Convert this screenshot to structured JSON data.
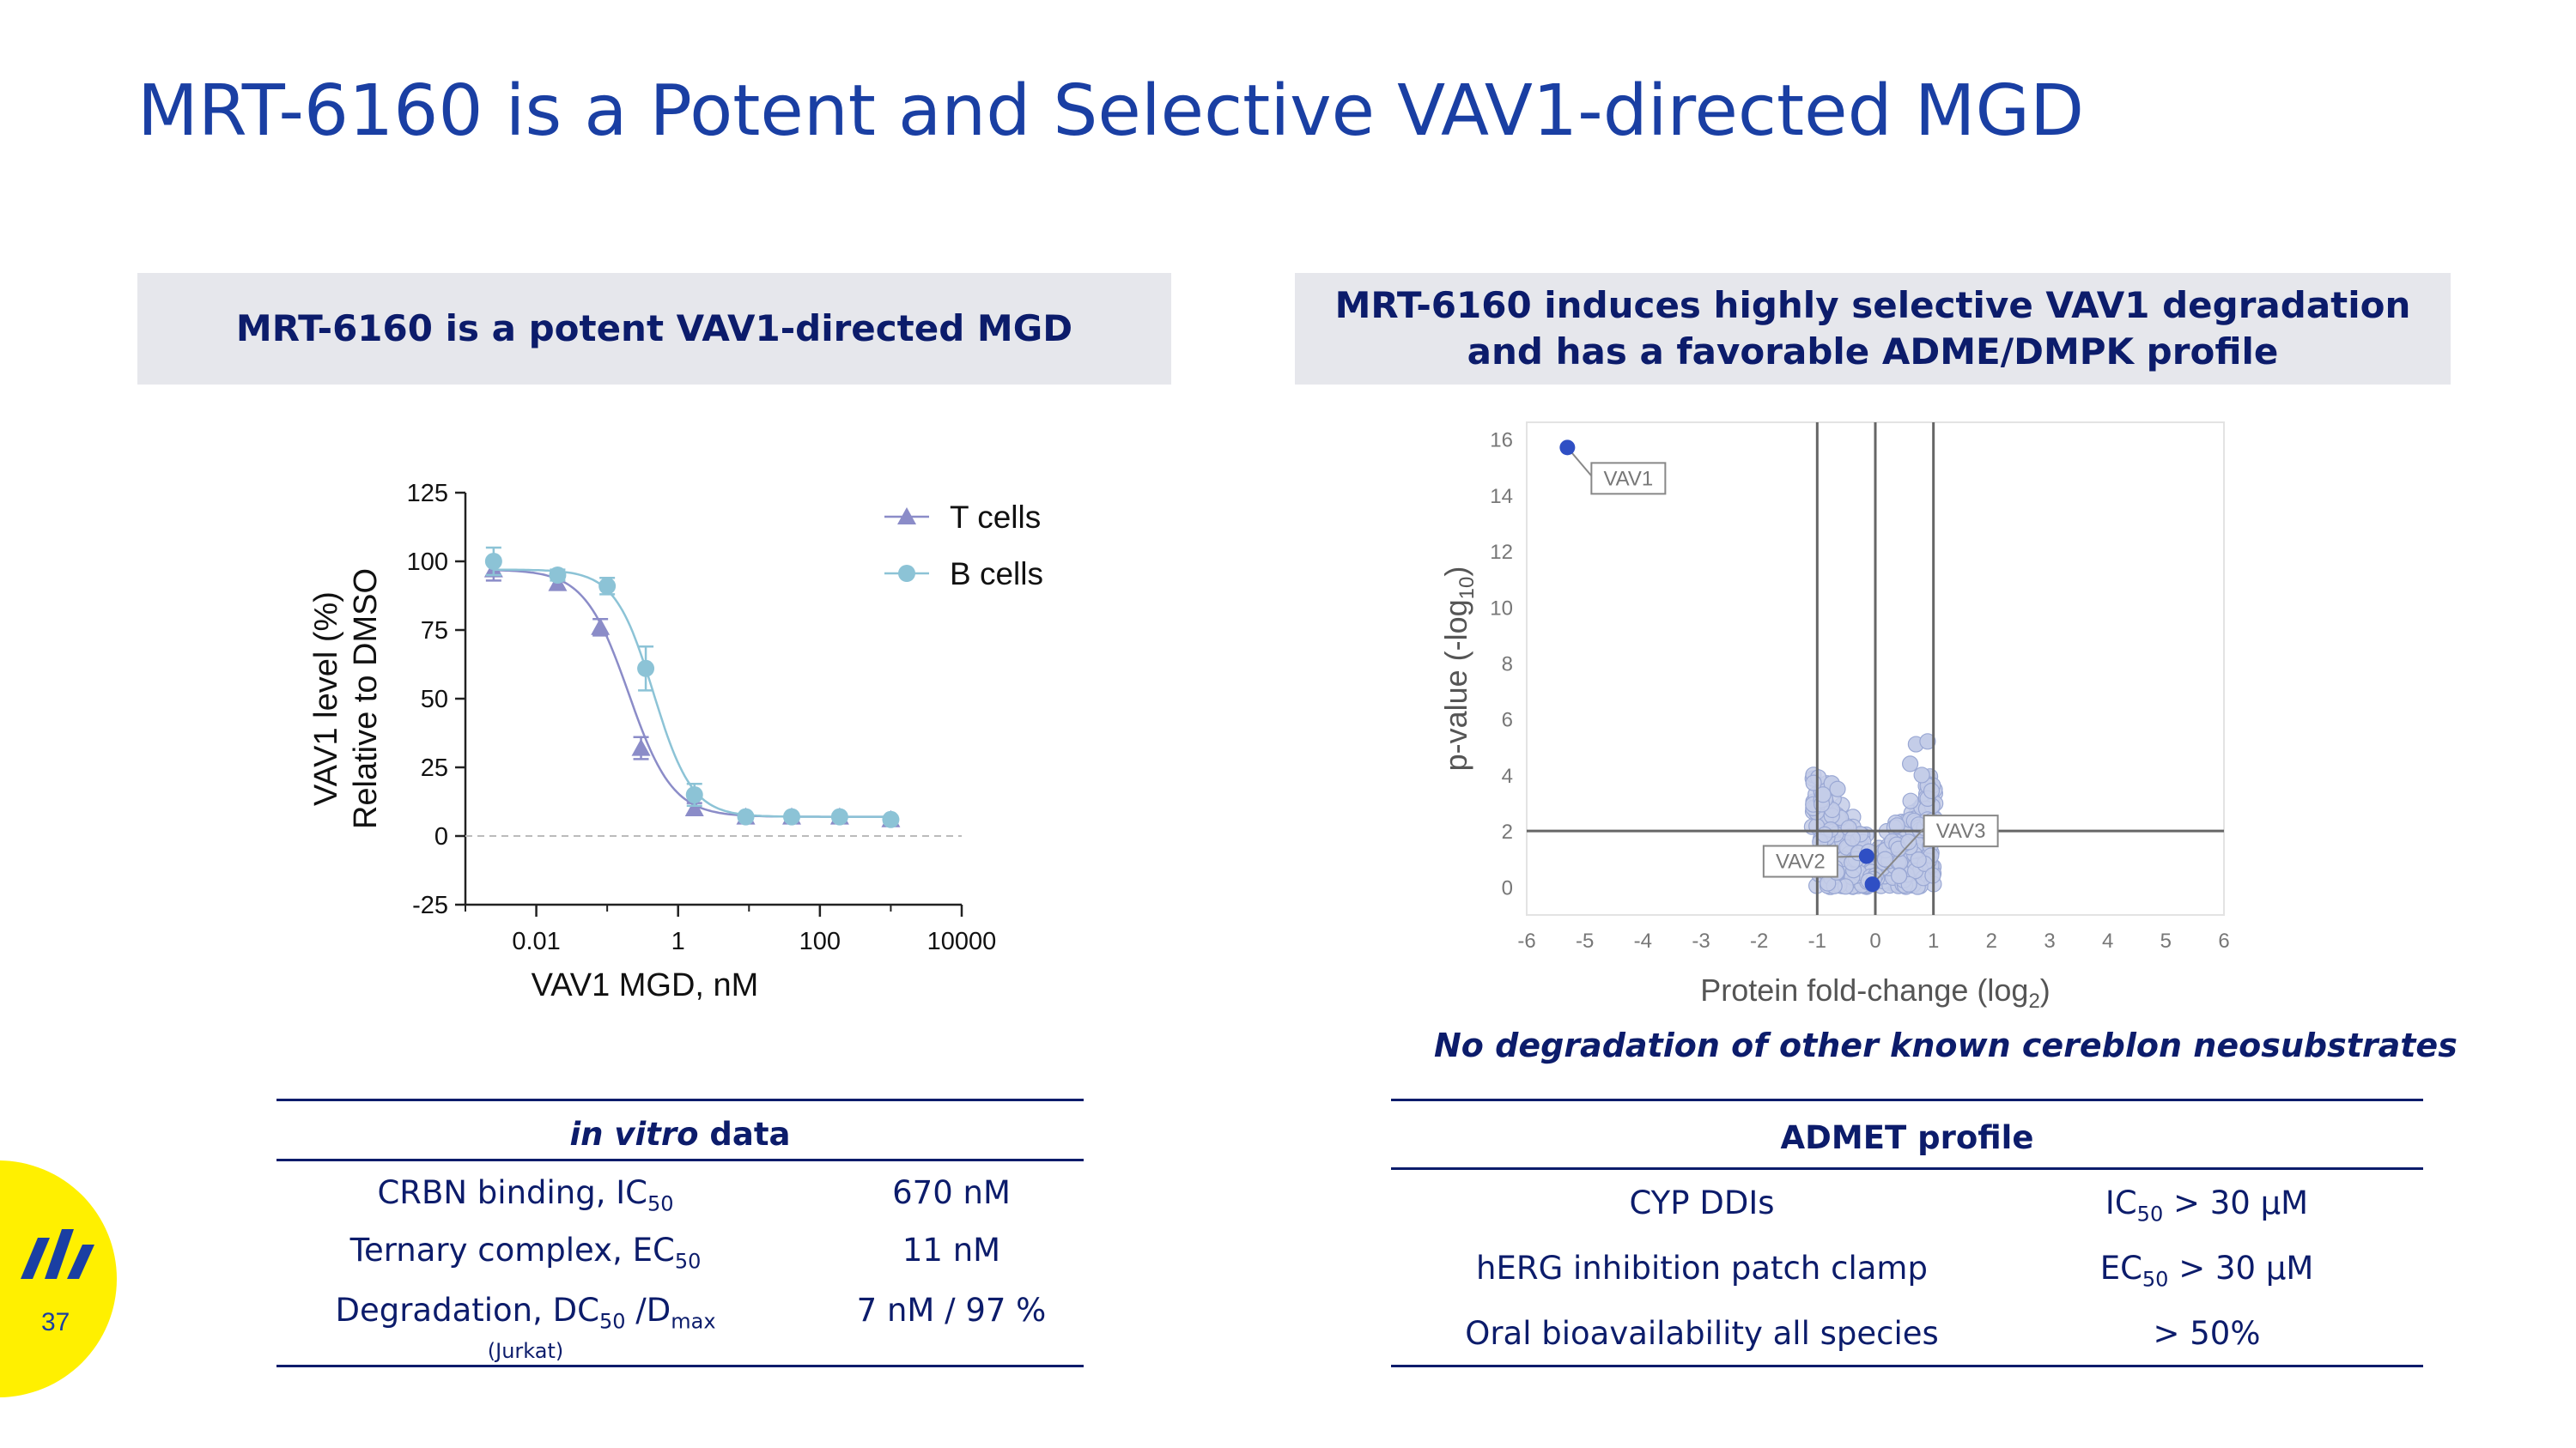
{
  "title": "MRT-6160 is a Potent and Selective VAV1-directed MGD",
  "left_panel": {
    "header": "MRT-6160 is a potent VAV1-directed MGD"
  },
  "right_panel": {
    "header_line1": "MRT-6160 induces highly selective VAV1 degradation",
    "header_line2": "and has a favorable ADME/DMPK profile"
  },
  "note": "No degradation of other known cereblon neosubstrates",
  "invitro_table": {
    "header_italic": "in vitro",
    "header_rest": " data",
    "rows": [
      {
        "label": "CRBN binding, IC",
        "sub": "50",
        "value": "670 nM"
      },
      {
        "label": "Ternary complex, EC",
        "sub": "50",
        "value": "11 nM"
      },
      {
        "label": "Degradation, DC",
        "sub": "50",
        "label2": " /D",
        "sub2": "max",
        "value": "7 nM / 97 %",
        "footnote": "(Jurkat)"
      }
    ]
  },
  "admet_table": {
    "header": "ADMET profile",
    "rows": [
      {
        "label": "CYP DDIs",
        "value_pre": "IC",
        "value_sub": "50",
        "value_post": " > 30 µM"
      },
      {
        "label": "hERG inhibition patch clamp",
        "value_pre": "EC",
        "value_sub": "50",
        "value_post": " > 30 µM"
      },
      {
        "label": "Oral bioavailability all species",
        "value_pre": "> 50%",
        "value_sub": "",
        "value_post": ""
      }
    ]
  },
  "page_number": "37",
  "colors": {
    "title": "#1a3fa3",
    "navy": "#0c1c6b",
    "t_cells": "#8b8cc8",
    "b_cells": "#8cc3d6",
    "highlight": "#2f4fc4",
    "volcano": "#c4cde8",
    "logo_yellow": "#fff000"
  },
  "chart_data": [
    {
      "type": "line",
      "title": "",
      "xlabel": "VAV1 MGD, nM",
      "ylabel_line1": "VAV1 level (%)",
      "ylabel_line2": "Relative to DMSO",
      "x_scale": "log10",
      "xlim": [
        0.001,
        10000
      ],
      "ylim": [
        -25,
        125
      ],
      "x_ticks": [
        0.01,
        1,
        100,
        10000
      ],
      "x_tick_labels": [
        "0.01",
        "1",
        "100",
        "10000"
      ],
      "y_ticks": [
        -25,
        0,
        25,
        50,
        75,
        100,
        125
      ],
      "y_tick_labels": [
        "-25",
        "0",
        "25",
        "50",
        "75",
        "100",
        "125"
      ],
      "legend_position": "top-right",
      "series": [
        {
          "name": "T cells",
          "marker": "triangle",
          "x": [
            0.0025,
            0.02,
            0.08,
            0.3,
            1.7,
            9,
            40,
            190,
            1000
          ],
          "y": [
            97,
            92,
            76,
            32,
            10,
            7,
            7,
            7,
            6
          ],
          "err": [
            4,
            2,
            3,
            4,
            2,
            1,
            1,
            1,
            1
          ]
        },
        {
          "name": "B cells",
          "marker": "circle",
          "x": [
            0.0025,
            0.02,
            0.1,
            0.35,
            1.7,
            9,
            40,
            190,
            1000
          ],
          "y": [
            100,
            95,
            91,
            61,
            15,
            7,
            7,
            7,
            6
          ],
          "err": [
            5,
            2,
            3,
            8,
            4,
            1,
            1,
            1,
            1
          ]
        }
      ]
    },
    {
      "type": "scatter",
      "title": "",
      "xlabel": "Protein fold-change (log",
      "xlabel_sub": "2",
      "xlabel_end": ")",
      "ylabel": "p-value (-log",
      "ylabel_sub": "10",
      "ylabel_end": ")",
      "xlim": [
        -6,
        6
      ],
      "ylim": [
        -1,
        16.6
      ],
      "x_ticks": [
        -6,
        -5,
        -4,
        -3,
        -2,
        -1,
        0,
        1,
        2,
        3,
        4,
        5,
        6
      ],
      "x_tick_labels": [
        "-6",
        "-5",
        "-4",
        "-3",
        "-2",
        "-1",
        "0",
        "1",
        "2",
        "3",
        "4",
        "5",
        "6"
      ],
      "y_ticks": [
        0,
        2,
        4,
        6,
        8,
        10,
        12,
        14,
        16
      ],
      "y_tick_labels": [
        "0",
        "2",
        "4",
        "6",
        "8",
        "10",
        "12",
        "14",
        "16"
      ],
      "thresholds": {
        "x": [
          -1,
          0,
          1
        ],
        "y": [
          2
        ]
      },
      "highlighted": [
        {
          "label": "VAV1",
          "x": -5.3,
          "y": 15.7
        },
        {
          "label": "VAV2",
          "x": -0.15,
          "y": 1.1
        },
        {
          "label": "VAV3",
          "x": -0.05,
          "y": 0.1
        }
      ]
    }
  ]
}
